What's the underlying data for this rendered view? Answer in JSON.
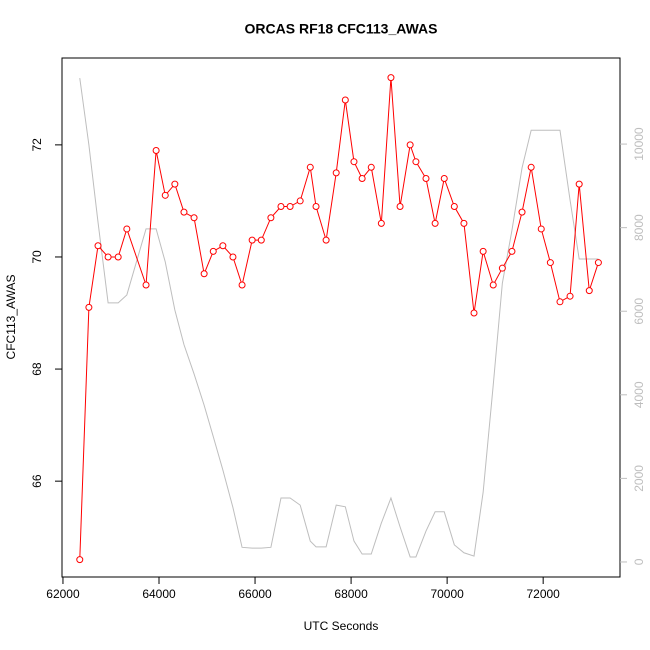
{
  "chart_data": {
    "type": "line",
    "title": "ORCAS RF18 CFC113_AWAS",
    "x_label": "UTC Seconds",
    "y_label": "CFC113_AWAS",
    "x": [
      62350,
      62540,
      62730,
      62940,
      63150,
      63330,
      63730,
      63940,
      64130,
      64330,
      64520,
      64730,
      64940,
      65130,
      65330,
      65540,
      65730,
      65940,
      66130,
      66330,
      66540,
      66730,
      66940,
      67150,
      67270,
      67480,
      67690,
      67880,
      68060,
      68230,
      68420,
      68630,
      68830,
      69020,
      69230,
      69350,
      69560,
      69750,
      69940,
      70150,
      70350,
      70560,
      70750,
      70960,
      71150,
      71350,
      71560,
      71750,
      71960,
      72150,
      72350,
      72560,
      72750,
      72960,
      73150
    ],
    "series": [
      {
        "color": "#ff0000",
        "markers": true,
        "values": [
          64.6,
          69.1,
          70.2,
          70.0,
          70.0,
          70.5,
          69.5,
          71.9,
          71.1,
          71.3,
          70.8,
          70.7,
          69.7,
          70.1,
          70.2,
          70.0,
          69.5,
          70.3,
          70.3,
          70.7,
          70.9,
          70.9,
          71.0,
          71.6,
          70.9,
          70.3,
          71.5,
          72.8,
          71.7,
          71.4,
          71.6,
          70.6,
          73.2,
          70.9,
          72.0,
          71.7,
          71.4,
          70.6,
          71.4,
          70.9,
          70.6,
          69.0,
          70.1,
          69.5,
          69.8,
          70.1,
          70.8,
          71.6,
          70.5,
          69.9,
          69.2,
          69.3,
          71.3,
          69.4,
          69.9
        ]
      },
      {
        "color": "#bebebe",
        "markers": false,
        "axis": "y2",
        "values": [
          11580,
          9980,
          8130,
          6200,
          6200,
          6390,
          7970,
          7970,
          7180,
          6030,
          5200,
          4500,
          3750,
          3000,
          2200,
          1300,
          350,
          330,
          330,
          350,
          1530,
          1530,
          1360,
          500,
          360,
          360,
          1360,
          1320,
          500,
          190,
          190,
          930,
          1530,
          840,
          120,
          120,
          740,
          1200,
          1200,
          410,
          220,
          140,
          1670,
          4230,
          6670,
          7940,
          9430,
          10330,
          10330,
          10330,
          10330,
          8660,
          7250,
          7250,
          7250
        ]
      }
    ],
    "xlim": [
      61980,
      73600
    ],
    "xticks": [
      62000,
      64000,
      66000,
      68000,
      70000,
      72000
    ],
    "ylim": [
      64.29,
      73.55
    ],
    "yticks": [
      66,
      68,
      70,
      72
    ],
    "y2lim": [
      -360,
      12060
    ],
    "y2ticks": [
      0,
      2000,
      4000,
      6000,
      8000,
      10000
    ],
    "y2_color": "#bebebe"
  }
}
